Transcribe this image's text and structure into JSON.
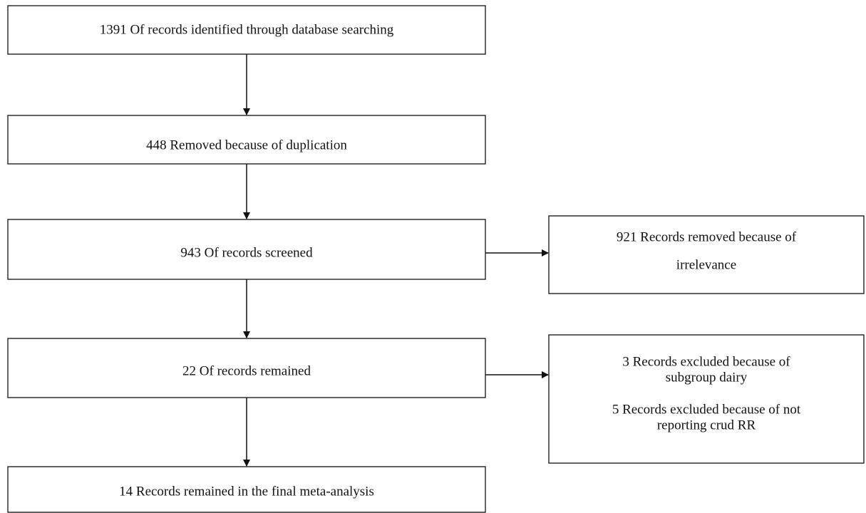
{
  "nodes": [
    {
      "lines": [
        "1391 Of records identified through database searching"
      ]
    },
    {
      "lines": [
        "448 Removed because of duplication"
      ]
    },
    {
      "lines": [
        "943 Of records screened"
      ]
    },
    {
      "lines": [
        "22 Of records remained"
      ]
    },
    {
      "lines": [
        "14 Records remained in the final meta-analysis"
      ]
    },
    {
      "lines": [
        "921 Records removed because of",
        "irrelevance"
      ]
    },
    {
      "lines": [
        "3 Records excluded because of",
        "subgroup dairy",
        "5 Records excluded because of not",
        "reporting crud RR"
      ]
    }
  ]
}
